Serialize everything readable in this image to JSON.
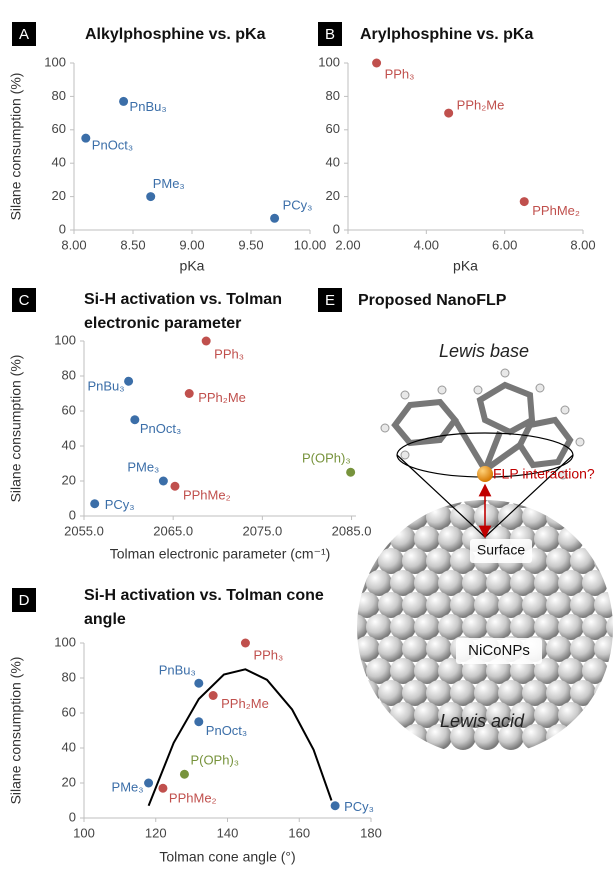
{
  "chart_data": [
    {
      "type": "scatter",
      "panel": "A",
      "title_lines": [
        "Alkylphosphine vs. pKa"
      ],
      "x_label": "pKa",
      "y_label": "Silane consumption (%)",
      "xlim": [
        8,
        10
      ],
      "xticks": [
        {
          "value": 8,
          "label": "8.00"
        },
        {
          "value": 8.5,
          "label": "8.50"
        },
        {
          "value": 9,
          "label": "9.00"
        },
        {
          "value": 9.5,
          "label": "9.50"
        },
        {
          "value": 10,
          "label": "10.00"
        }
      ],
      "ylim": [
        0,
        100
      ],
      "yticks": [
        0,
        20,
        40,
        60,
        80,
        100
      ],
      "series": [
        {
          "color": "#3b6ea8",
          "x": [
            8.42,
            8.1,
            8.65,
            9.7
          ],
          "values": [
            77,
            55,
            20,
            7
          ],
          "labels": [
            "PnBu₃",
            "PnOct₃",
            "PMe₃",
            "PCy₃"
          ]
        }
      ]
    },
    {
      "type": "scatter",
      "panel": "B",
      "title_lines": [
        "Arylphosphine vs. pKa"
      ],
      "x_label": "pKa",
      "xlim": [
        2,
        8
      ],
      "xticks": [
        {
          "value": 2,
          "label": "2.00"
        },
        {
          "value": 4,
          "label": "4.00"
        },
        {
          "value": 6,
          "label": "6.00"
        },
        {
          "value": 8,
          "label": "8.00"
        }
      ],
      "ylim": [
        0,
        100
      ],
      "yticks": [
        0,
        20,
        40,
        60,
        80,
        100
      ],
      "series": [
        {
          "color": "#c0504d",
          "x": [
            2.73,
            4.57,
            6.5
          ],
          "values": [
            100,
            70,
            17
          ],
          "labels": [
            "PPh₃",
            "PPh₂Me",
            "PPhMe₂"
          ]
        }
      ]
    },
    {
      "type": "scatter",
      "panel": "C",
      "title_lines": [
        "Si-H activation vs. Tolman",
        "electronic parameter"
      ],
      "x_label": "Tolman electronic parameter (cm⁻¹)",
      "y_label": "Silane consumption (%)",
      "xlim": [
        2055,
        2085.5
      ],
      "xticks": [
        {
          "value": 2055,
          "label": "2055.0"
        },
        {
          "value": 2065,
          "label": "2065.0"
        },
        {
          "value": 2075,
          "label": "2075.0"
        },
        {
          "value": 2085,
          "label": "2085.0"
        }
      ],
      "ylim": [
        0,
        100
      ],
      "yticks": [
        0,
        20,
        40,
        60,
        80,
        100
      ],
      "series": [
        {
          "color": "#3b6ea8",
          "x": [
            2060.0,
            2060.7,
            2063.9,
            2056.2
          ],
          "values": [
            77,
            55,
            20,
            7
          ],
          "labels": [
            "PnBu₃",
            "PnOct₃",
            "PMe₃",
            "PCy₃"
          ]
        },
        {
          "color": "#c0504d",
          "x": [
            2068.7,
            2066.8,
            2065.2
          ],
          "values": [
            100,
            70,
            17
          ],
          "labels": [
            "PPh₃",
            "PPh₂Me",
            "PPhMe₂"
          ]
        },
        {
          "color": "#77933c",
          "x": [
            2084.9
          ],
          "values": [
            25
          ],
          "labels": [
            "P(OPh)₃"
          ]
        }
      ]
    },
    {
      "type": "scatter",
      "panel": "D",
      "title_lines": [
        "Si-H activation vs. Tolman cone",
        "angle"
      ],
      "x_label": "Tolman cone angle (°)",
      "y_label": "Silane consumption (%)",
      "xlim": [
        100,
        180
      ],
      "xticks": [
        100,
        120,
        140,
        160,
        180
      ],
      "ylim": [
        0,
        100
      ],
      "yticks": [
        0,
        20,
        40,
        60,
        80,
        100
      ],
      "series": [
        {
          "color": "#3b6ea8",
          "x": [
            132,
            132,
            118,
            170
          ],
          "values": [
            77,
            55,
            20,
            7
          ],
          "labels": [
            "PnBu₃",
            "PnOct₃",
            "PMe₃",
            "PCy₃"
          ]
        },
        {
          "color": "#c0504d",
          "x": [
            145,
            136,
            122
          ],
          "values": [
            100,
            70,
            17
          ],
          "labels": [
            "PPh₃",
            "PPh₂Me",
            "PPhMe₂"
          ]
        },
        {
          "color": "#77933c",
          "x": [
            128
          ],
          "values": [
            25
          ],
          "labels": [
            "P(OPh)₃"
          ]
        }
      ],
      "fit": {
        "color": "#000000",
        "x": [
          118,
          125,
          132,
          139,
          145,
          151,
          158,
          164,
          169
        ],
        "values": [
          7,
          43,
          68,
          82,
          85,
          79,
          62,
          39,
          10
        ]
      }
    }
  ],
  "diagram": {
    "panel": "E",
    "title": "Proposed NanoFLP",
    "top_label": "Lewis base",
    "arrow_label": "FLP interaction?",
    "surface_label": "Surface",
    "particle_label": "NiCoNPs",
    "bottom_label": "Lewis acid"
  }
}
